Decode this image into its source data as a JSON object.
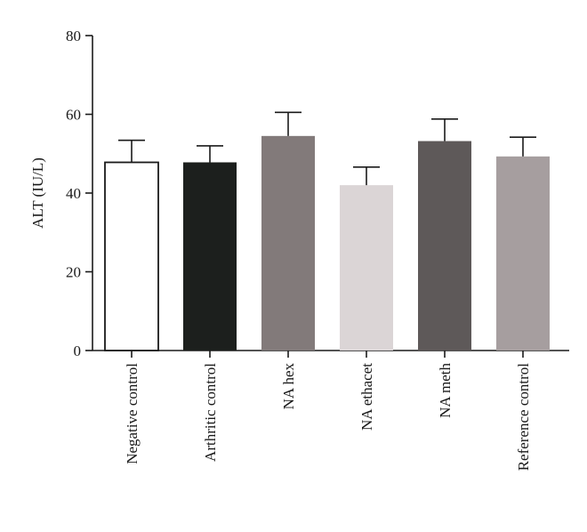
{
  "chart_data": {
    "type": "bar",
    "title": "",
    "xlabel": "",
    "ylabel": "ALT (IU/L)",
    "ylim": [
      0,
      80
    ],
    "yticks": [
      0,
      20,
      40,
      60,
      80
    ],
    "grid": false,
    "categories": [
      "Negative control",
      "Arthritic control",
      "NA hex",
      "NA ethacet",
      "NA meth",
      "Reference control"
    ],
    "values": [
      47.8,
      47.8,
      54.5,
      42.0,
      53.2,
      49.3
    ],
    "errors": [
      5.6,
      4.2,
      6.0,
      4.6,
      5.6,
      4.9
    ],
    "colors": [
      "#ffffff",
      "#1c1f1d",
      "#827a7a",
      "#dbd5d6",
      "#5e5959",
      "#a69e9f"
    ],
    "edge_color": "#1a1a1a"
  }
}
